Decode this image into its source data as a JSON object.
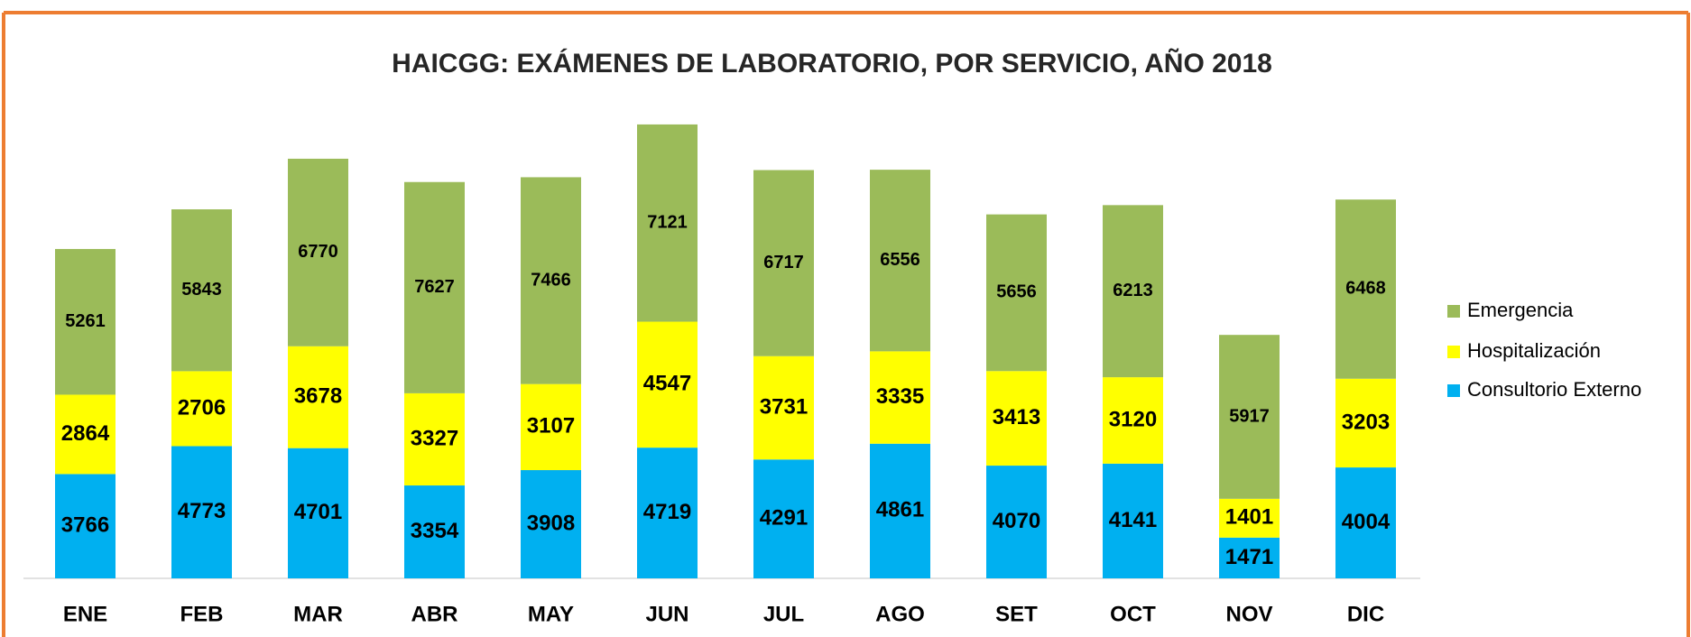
{
  "chart_data": {
    "type": "bar",
    "stacked": true,
    "title": "HAICGG: EXÁMENES DE LABORATORIO, POR SERVICIO, AÑO 2018",
    "categories": [
      "ENE",
      "FEB",
      "MAR",
      "ABR",
      "MAY",
      "JUN",
      "JUL",
      "AGO",
      "SET",
      "OCT",
      "NOV",
      "DIC"
    ],
    "series": [
      {
        "name": "Consultorio Externo",
        "color": "#00b0f0",
        "values": [
          3766,
          4773,
          4701,
          3354,
          3908,
          4719,
          4291,
          4861,
          4070,
          4141,
          1471,
          4004
        ]
      },
      {
        "name": "Hospitalización",
        "color": "#ffff00",
        "values": [
          2864,
          2706,
          3678,
          3327,
          3107,
          4547,
          3731,
          3335,
          3413,
          3120,
          1401,
          3203
        ]
      },
      {
        "name": "Emergencia",
        "color": "#9bbb59",
        "values": [
          5261,
          5843,
          6770,
          7627,
          7466,
          7121,
          6717,
          6556,
          5656,
          6213,
          5917,
          6468
        ]
      }
    ],
    "ylim": [
      0,
      20000
    ],
    "legend": "right"
  }
}
